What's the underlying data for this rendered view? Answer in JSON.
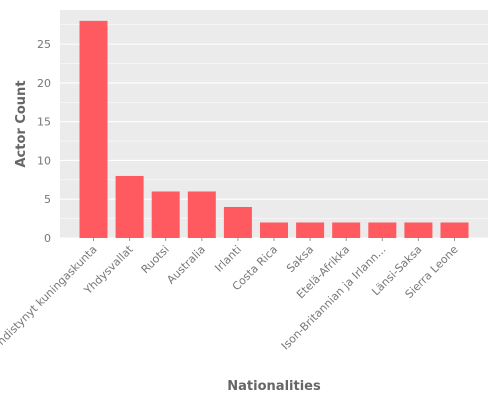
{
  "chart_data": {
    "type": "bar",
    "title": "",
    "xlabel": "Nationalities",
    "ylabel": "Actor Count",
    "categories": [
      "Yhdistynyt kuningaskunta",
      "Yhdysvallat",
      "Ruotsi",
      "Australia",
      "Irlanti",
      "Costa Rica",
      "Saksa",
      "Etelä-Afrikka",
      "Ison-Britannian ja Irlann...",
      "Länsi-Saksa",
      "Sierra Leone"
    ],
    "values": [
      28,
      8,
      6,
      6,
      4,
      2,
      2,
      2,
      2,
      2,
      2
    ],
    "ylim": [
      0,
      29.4
    ],
    "yticks": [
      0,
      5,
      10,
      15,
      20,
      25
    ],
    "grid": true,
    "legend": "none",
    "colors": {
      "bar": "#ff5a5f",
      "panel": "#ebebeb",
      "grid": "#ffffff"
    }
  }
}
